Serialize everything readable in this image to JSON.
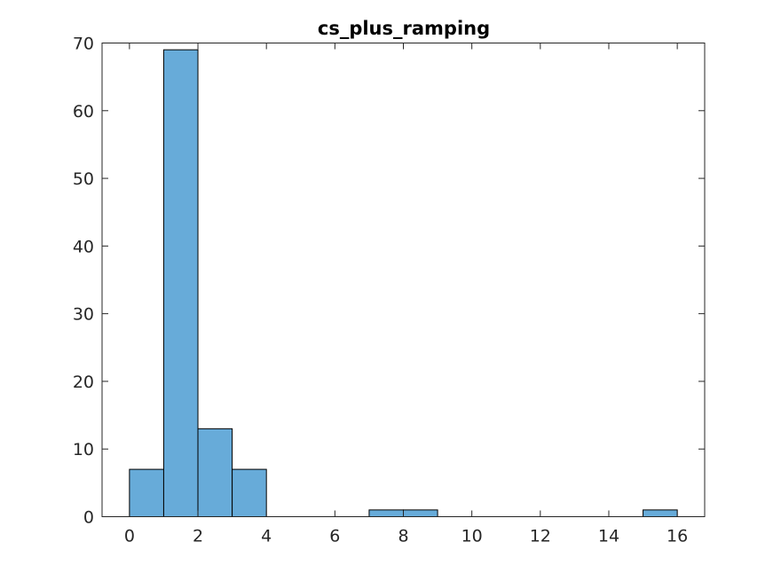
{
  "chart_data": {
    "type": "bar",
    "title": "cs_plus_ramping",
    "xlabel": "",
    "ylabel": "",
    "bin_edges": [
      0,
      1,
      2,
      3,
      4,
      5,
      6,
      7,
      8,
      9,
      10,
      11,
      12,
      13,
      14,
      15,
      16
    ],
    "values": [
      7,
      69,
      13,
      7,
      0,
      0,
      0,
      1,
      1,
      0,
      0,
      0,
      0,
      0,
      0,
      1
    ],
    "xlim": [
      -0.8,
      16.8
    ],
    "ylim": [
      0,
      70
    ],
    "xticks": [
      0,
      2,
      4,
      6,
      8,
      10,
      12,
      14,
      16
    ],
    "yticks": [
      0,
      10,
      20,
      30,
      40,
      50,
      60,
      70
    ],
    "bar_color": "#67ABD9",
    "edge_color": "#000000",
    "grid": false,
    "legend": "none"
  }
}
